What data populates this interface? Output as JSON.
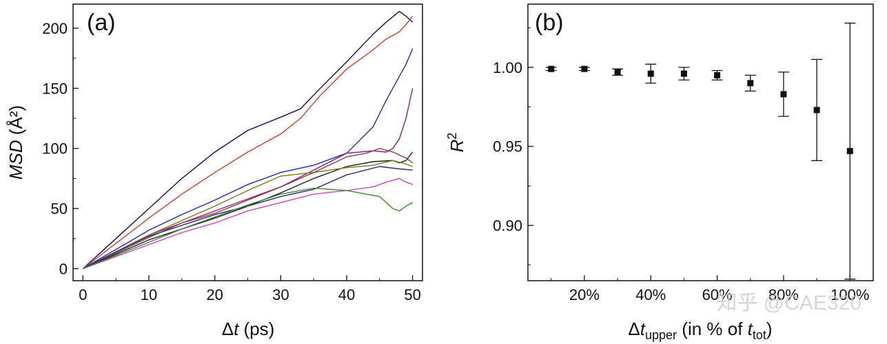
{
  "chart_data": [
    {
      "type": "line",
      "panel_label": "(a)",
      "xlabel_prefix": "Δ",
      "xlabel_italic": "t",
      "xlabel_suffix": " (ps)",
      "ylabel_italic": "MSD",
      "ylabel_suffix": " (Å²)",
      "xlim": [
        -1.5,
        51.5
      ],
      "ylim": [
        -10,
        220
      ],
      "x_ticks": [
        0,
        10,
        20,
        30,
        40,
        50
      ],
      "y_ticks": [
        0,
        50,
        100,
        150,
        200
      ],
      "grid": false,
      "series": [
        {
          "color": "#0a0a6e",
          "x": [
            0,
            5,
            10,
            15,
            20,
            25,
            30,
            33,
            36,
            40,
            44,
            46,
            48,
            49,
            50
          ],
          "y": [
            0,
            25,
            50,
            75,
            97,
            115,
            126,
            133,
            150,
            172,
            195,
            205,
            214,
            210,
            205
          ]
        },
        {
          "color": "#d63a2a",
          "x": [
            0,
            5,
            10,
            15,
            20,
            25,
            30,
            33,
            36,
            40,
            44,
            46,
            48,
            49,
            50
          ],
          "y": [
            0,
            21,
            42,
            62,
            80,
            97,
            112,
            125,
            144,
            166,
            182,
            191,
            197,
            203,
            210
          ]
        },
        {
          "color": "#1f2ab8",
          "x": [
            0,
            5,
            10,
            15,
            20,
            25,
            30,
            35,
            40,
            44,
            46,
            48,
            49,
            50
          ],
          "y": [
            0,
            16,
            32,
            45,
            57,
            70,
            80,
            86,
            96,
            118,
            140,
            160,
            170,
            183
          ]
        },
        {
          "color": "#8a1a7e",
          "x": [
            0,
            5,
            10,
            15,
            20,
            25,
            30,
            35,
            40,
            44,
            46,
            47,
            48,
            49,
            50
          ],
          "y": [
            0,
            14,
            28,
            38,
            48,
            58,
            68,
            82,
            96,
            98,
            97,
            100,
            108,
            125,
            150
          ]
        },
        {
          "color": "#1a1a1a",
          "x": [
            0,
            5,
            10,
            15,
            20,
            25,
            30,
            35,
            40,
            44,
            47,
            48,
            49,
            50
          ],
          "y": [
            0,
            12,
            24,
            33,
            42,
            52,
            63,
            75,
            85,
            89,
            90,
            88,
            90,
            97
          ]
        },
        {
          "color": "#7a7a12",
          "x": [
            0,
            5,
            10,
            15,
            20,
            25,
            30,
            35,
            40,
            44,
            47,
            49,
            50
          ],
          "y": [
            0,
            14,
            28,
            40,
            52,
            65,
            77,
            80,
            84,
            86,
            90,
            87,
            85
          ]
        },
        {
          "color": "#8a3a3a",
          "x": [
            0,
            5,
            10,
            15,
            20,
            25,
            30,
            35,
            40,
            43,
            45,
            47,
            49,
            50
          ],
          "y": [
            0,
            13,
            26,
            38,
            46,
            57,
            68,
            80,
            93,
            96,
            100,
            97,
            92,
            88
          ]
        },
        {
          "color": "#2a2a7a",
          "x": [
            0,
            5,
            10,
            15,
            20,
            25,
            30,
            35,
            40,
            45,
            48,
            50
          ],
          "y": [
            0,
            14,
            27,
            36,
            45,
            52,
            60,
            66,
            78,
            85,
            83,
            82
          ]
        },
        {
          "color": "#cc44cc",
          "x": [
            0,
            5,
            10,
            15,
            20,
            25,
            30,
            35,
            40,
            44,
            46,
            48,
            49,
            50
          ],
          "y": [
            0,
            10,
            20,
            30,
            38,
            48,
            55,
            62,
            65,
            68,
            72,
            75,
            72,
            70
          ]
        },
        {
          "color": "#3a8a2a",
          "x": [
            0,
            5,
            10,
            15,
            20,
            25,
            30,
            35,
            40,
            43,
            45,
            47,
            48,
            49,
            50
          ],
          "y": [
            0,
            11,
            22,
            33,
            43,
            53,
            62,
            67,
            65,
            62,
            60,
            50,
            48,
            52,
            55
          ]
        }
      ]
    },
    {
      "type": "scatter",
      "panel_label": "(b)",
      "xlabel_prefix": "Δ",
      "xlabel_italic": "t",
      "xlabel_sub": "upper",
      "xlabel_mid": " (in % of ",
      "xlabel_italic2": "t",
      "xlabel_sub2": "tot",
      "xlabel_end": ")",
      "ylabel_italic": "R",
      "ylabel_sup": "2",
      "xlim": [
        3,
        107
      ],
      "ylim": [
        0.865,
        1.04
      ],
      "x_ticks": [
        20,
        40,
        60,
        80,
        100
      ],
      "x_tick_labels": [
        "20%",
        "40%",
        "60%",
        "80%",
        "100%"
      ],
      "y_ticks": [
        0.9,
        0.95,
        1.0
      ],
      "y_tick_labels": [
        "0.90",
        "0.95",
        "1.00"
      ],
      "grid": false,
      "points": [
        {
          "x": 10,
          "y": 0.999,
          "err": 0.001
        },
        {
          "x": 20,
          "y": 0.999,
          "err": 0.001
        },
        {
          "x": 30,
          "y": 0.997,
          "err": 0.002
        },
        {
          "x": 40,
          "y": 0.996,
          "err": 0.006
        },
        {
          "x": 50,
          "y": 0.996,
          "err": 0.004
        },
        {
          "x": 60,
          "y": 0.995,
          "err": 0.003
        },
        {
          "x": 70,
          "y": 0.99,
          "err": 0.005
        },
        {
          "x": 80,
          "y": 0.983,
          "err": 0.014
        },
        {
          "x": 90,
          "y": 0.973,
          "err": 0.032
        },
        {
          "x": 100,
          "y": 0.947,
          "err": 0.081
        }
      ]
    }
  ],
  "watermark": "知乎 @CAE320"
}
